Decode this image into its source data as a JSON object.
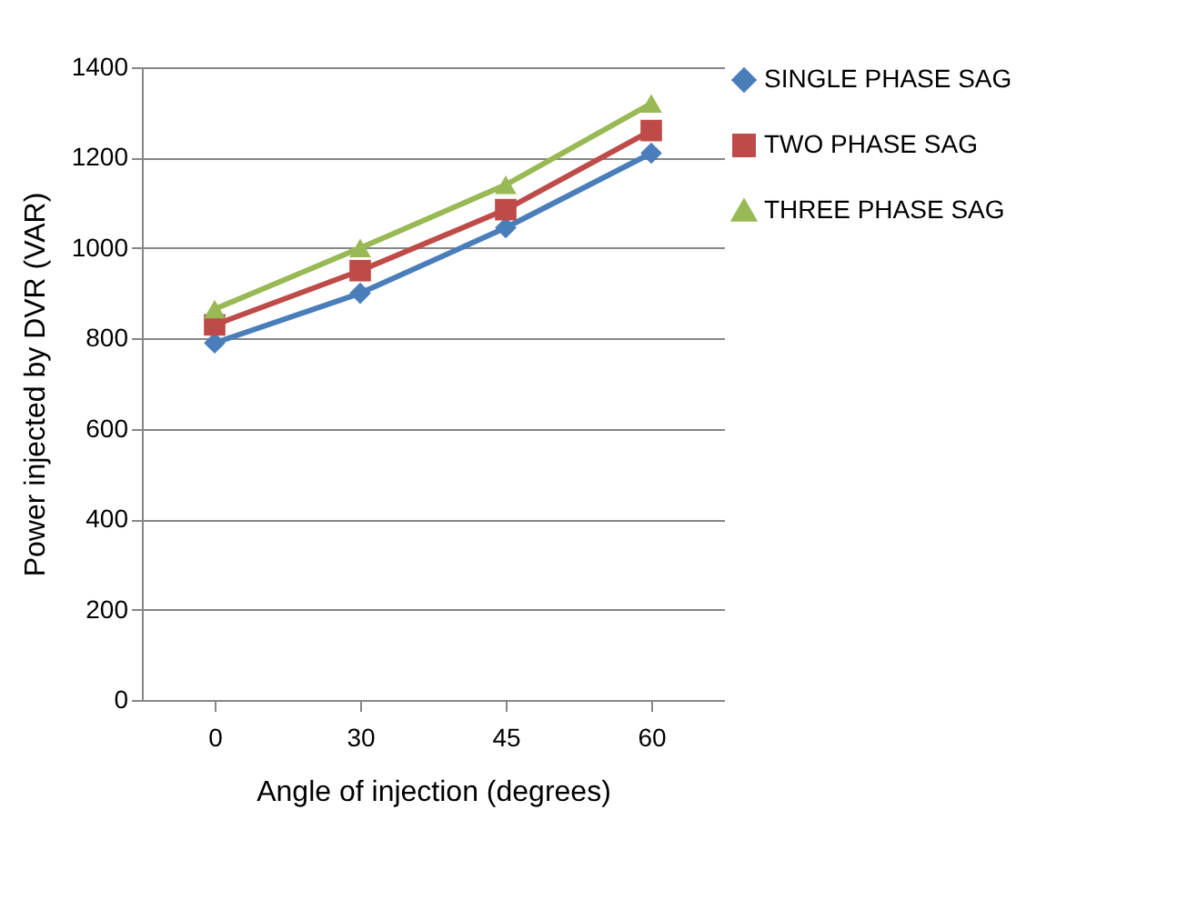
{
  "chart_data": {
    "type": "line",
    "xlabel": "Angle of injection (degrees)",
    "ylabel": "Power injected by DVR (VAR)",
    "categories": [
      "0",
      "30",
      "45",
      "60"
    ],
    "series": [
      {
        "name": "SINGLE PHASE SAG",
        "color": "#4a7ebb",
        "marker": "diamond",
        "values": [
          790,
          900,
          1045,
          1210
        ]
      },
      {
        "name": "TWO PHASE SAG",
        "color": "#be4b48",
        "marker": "square",
        "values": [
          830,
          950,
          1085,
          1260
        ]
      },
      {
        "name": "THREE PHASE SAG",
        "color": "#98b954",
        "marker": "triangle",
        "values": [
          865,
          1000,
          1140,
          1320
        ]
      }
    ],
    "ylim": [
      0,
      1400
    ],
    "yticks": [
      0,
      200,
      400,
      600,
      800,
      1000,
      1200,
      1400
    ],
    "grid": "y",
    "legend": "right",
    "line_style": "solid"
  }
}
